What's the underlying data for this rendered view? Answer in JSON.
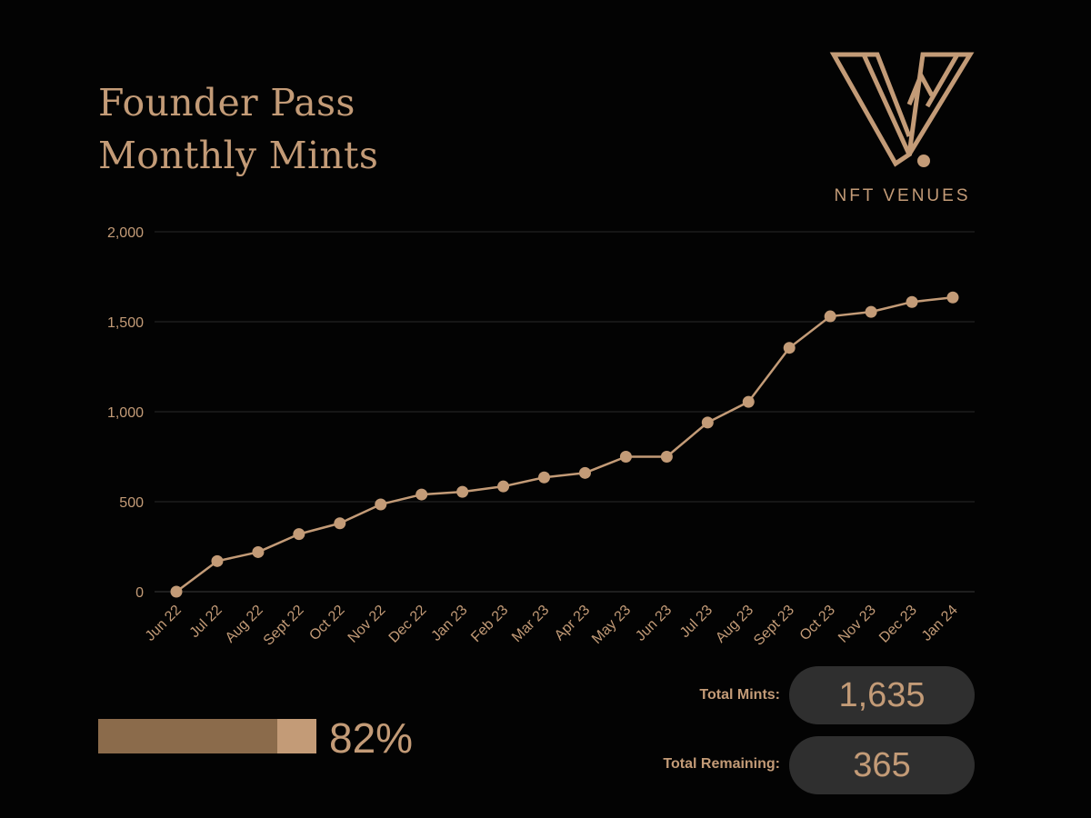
{
  "title": {
    "line1": "Founder Pass",
    "line2": "Monthly Mints"
  },
  "brand": {
    "name": "NFT VENUES",
    "logo_icon": "v-monogram-logo-icon"
  },
  "colors": {
    "background": "#030303",
    "accent": "#c39b77",
    "accent_dark": "#8b6b4b",
    "gridline": "#2a2a2a",
    "pill": "#2f2f2f"
  },
  "chart_data": {
    "type": "line",
    "categories": [
      "Jun 22",
      "Jul 22",
      "Aug 22",
      "Sept 22",
      "Oct 22",
      "Nov 22",
      "Dec 22",
      "Jan 23",
      "Feb 23",
      "Mar 23",
      "Apr 23",
      "May 23",
      "Jun 23",
      "Jul 23",
      "Aug 23",
      "Sept 23",
      "Oct 23",
      "Nov 23",
      "Dec 23",
      "Jan 24"
    ],
    "series": [
      {
        "values": [
          0,
          170,
          220,
          320,
          380,
          485,
          540,
          555,
          585,
          635,
          660,
          750,
          750,
          940,
          1055,
          1355,
          1530,
          1555,
          1610,
          1635
        ]
      }
    ],
    "ylim": [
      0,
      2000
    ],
    "yticks": [
      0,
      500,
      1000,
      1500,
      2000
    ],
    "ytick_labels": [
      "0",
      "500",
      "1,000",
      "1,500",
      "2,000"
    ],
    "grid": true,
    "markers": true
  },
  "progress": {
    "value": 0.82,
    "label": "82%"
  },
  "stats": {
    "total_mints_label": "Total Mints:",
    "total_mints_value": "1,635",
    "total_remaining_label": "Total Remaining:",
    "total_remaining_value": "365"
  }
}
